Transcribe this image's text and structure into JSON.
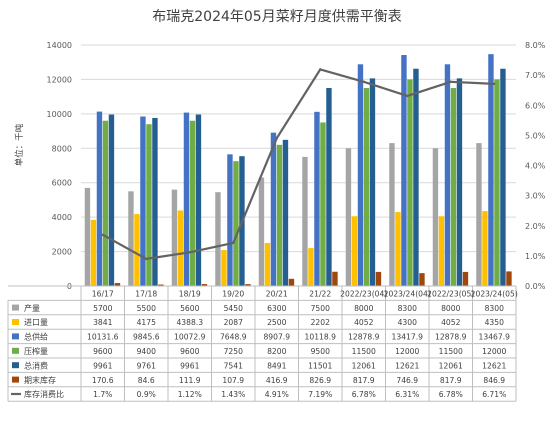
{
  "chart_data": {
    "type": "bar",
    "title": "布瑞克2024年05月菜籽月度供需平衡表",
    "ylabel": "单位：千吨",
    "ylim": [
      0,
      14000
    ],
    "y2lim": [
      0,
      0.08
    ],
    "grid": true,
    "legend": "table-below",
    "y_ticks": [
      "0",
      "2000",
      "4000",
      "6000",
      "8000",
      "10000",
      "12000",
      "14000"
    ],
    "y2_ticks": [
      "0.0%",
      "1.0%",
      "2.0%",
      "3.0%",
      "4.0%",
      "5.0%",
      "6.0%",
      "7.0%",
      "8.0%"
    ],
    "categories": [
      "16/17",
      "17/18",
      "18/19",
      "19/20",
      "20/21",
      "21/22",
      "2022/23(04)",
      "2023/24(04)",
      "2022/23(05)",
      "2023/24(05)"
    ],
    "series": [
      {
        "name": "产量",
        "kind": "bar",
        "color": "#a5a5a5",
        "values": [
          5700,
          5500,
          5600,
          5450,
          6300,
          7500,
          8000,
          8300,
          8000,
          8300
        ],
        "labels": [
          "5700",
          "5500",
          "5600",
          "5450",
          "6300",
          "7500",
          "8000",
          "8300",
          "8000",
          "8300"
        ]
      },
      {
        "name": "进口量",
        "kind": "bar",
        "color": "#ffc000",
        "values": [
          3841,
          4175,
          4388.3,
          2087,
          2500,
          2202,
          4052,
          4300,
          4052,
          4350
        ],
        "labels": [
          "3841",
          "4175",
          "4388.3",
          "2087",
          "2500",
          "2202",
          "4052",
          "4300",
          "4052",
          "4350"
        ]
      },
      {
        "name": "总供给",
        "kind": "bar",
        "color": "#4472c4",
        "values": [
          10131.6,
          9845.6,
          10072.9,
          7648.9,
          8907.9,
          10118.9,
          12878.9,
          13417.9,
          12878.9,
          13467.9
        ],
        "labels": [
          "10131.6",
          "9845.6",
          "10072.9",
          "7648.9",
          "8907.9",
          "10118.9",
          "12878.9",
          "13417.9",
          "12878.9",
          "13467.9"
        ]
      },
      {
        "name": "压榨量",
        "kind": "bar",
        "color": "#70ad47",
        "values": [
          9600,
          9400,
          9600,
          7250,
          8200,
          9500,
          11500,
          12000,
          11500,
          12000
        ],
        "labels": [
          "9600",
          "9400",
          "9600",
          "7250",
          "8200",
          "9500",
          "11500",
          "12000",
          "11500",
          "12000"
        ]
      },
      {
        "name": "总消费",
        "kind": "bar",
        "color": "#255e91",
        "values": [
          9961,
          9761,
          9961,
          7541,
          8491,
          11501,
          12061,
          12621,
          12061,
          12621
        ],
        "labels": [
          "9961",
          "9761",
          "9961",
          "7541",
          "8491",
          "11501",
          "12061",
          "12621",
          "12061",
          "12621"
        ]
      },
      {
        "name": "期末库存",
        "kind": "bar",
        "color": "#9e480e",
        "values": [
          170.6,
          84.6,
          111.9,
          107.9,
          416.9,
          826.9,
          817.9,
          746.9,
          817.9,
          846.9
        ],
        "labels": [
          "170.6",
          "84.6",
          "111.9",
          "107.9",
          "416.9",
          "826.9",
          "817.9",
          "746.9",
          "817.9",
          "846.9"
        ]
      },
      {
        "name": "库存消费比",
        "kind": "line",
        "axis": "y2",
        "color": "#636363",
        "values": [
          0.017,
          0.009,
          0.0112,
          0.0143,
          0.0491,
          0.0719,
          0.0678,
          0.0631,
          0.0678,
          0.0671
        ],
        "labels": [
          "1.7%",
          "0.9%",
          "1.12%",
          "1.43%",
          "4.91%",
          "7.19%",
          "6.78%",
          "6.31%",
          "6.78%",
          "6.71%"
        ]
      }
    ]
  }
}
